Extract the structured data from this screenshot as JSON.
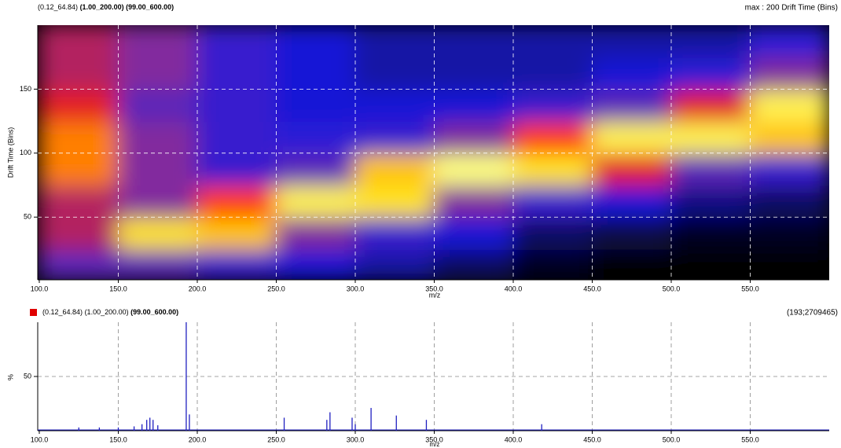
{
  "chart_data": [
    {
      "type": "heatmap",
      "title_parts": [
        "(0.12_64.84)",
        "(1.00_200.00)",
        "(99.00_600.00)"
      ],
      "subtitle": "max : 200 Drift Time (Bins)",
      "x_label": "m/z",
      "y_label": "Drift Time (Bins)",
      "xlim": [
        99,
        600
      ],
      "ylim": [
        1,
        200
      ],
      "xticks": [
        {
          "value": 100,
          "label": "100.0"
        },
        {
          "value": 150,
          "label": "150.0"
        },
        {
          "value": 200,
          "label": "200.0"
        },
        {
          "value": 250,
          "label": "250.0"
        },
        {
          "value": 300,
          "label": "300.0"
        },
        {
          "value": 350,
          "label": "350.0"
        },
        {
          "value": 400,
          "label": "400.0"
        },
        {
          "value": 450,
          "label": "450.0"
        },
        {
          "value": 500,
          "label": "500.0"
        },
        {
          "value": 550,
          "label": "550.0"
        }
      ],
      "yticks": [
        50,
        100,
        150
      ],
      "grid": true,
      "colormap": [
        "#000000",
        "#1a1ae0",
        "#7a2aa8",
        "#ff1a00",
        "#ffd800",
        "#ffff80"
      ],
      "x_bins": [
        100,
        150,
        200,
        250,
        300,
        350,
        400,
        450,
        500,
        550,
        600
      ],
      "y_bins": [
        1,
        25,
        50,
        75,
        100,
        125,
        150,
        175,
        200
      ],
      "values": [
        [
          35,
          35,
          30,
          25,
          22,
          18,
          14,
          12,
          12,
          12
        ],
        [
          45,
          70,
          65,
          40,
          30,
          25,
          18,
          16,
          14,
          14
        ],
        [
          45,
          40,
          55,
          75,
          70,
          40,
          30,
          25,
          20,
          18
        ],
        [
          60,
          40,
          30,
          35,
          65,
          80,
          70,
          50,
          35,
          30
        ],
        [
          60,
          40,
          30,
          28,
          30,
          40,
          55,
          75,
          75,
          65
        ],
        [
          50,
          35,
          30,
          25,
          25,
          25,
          30,
          35,
          50,
          75
        ],
        [
          45,
          40,
          30,
          25,
          22,
          22,
          22,
          25,
          28,
          40
        ],
        [
          45,
          40,
          30,
          25,
          22,
          22,
          22,
          22,
          22,
          28
        ]
      ]
    },
    {
      "type": "spectrum",
      "title_parts": [
        "(0.12_64.84)",
        "(1.00_200.00)",
        "(99.00_600.00)"
      ],
      "legend_color": "#e00000",
      "subtitle": "(193;2709465)",
      "x_label": "m/z",
      "y_label": "%",
      "xlim": [
        99,
        600
      ],
      "ylim": [
        0,
        100
      ],
      "xticks": [
        {
          "value": 100,
          "label": "100.0"
        },
        {
          "value": 150,
          "label": "150.0"
        },
        {
          "value": 200,
          "label": "200.0"
        },
        {
          "value": 250,
          "label": "250.0"
        },
        {
          "value": 300,
          "label": "300.0"
        },
        {
          "value": 350,
          "label": "350.0"
        },
        {
          "value": 400,
          "label": "400.0"
        },
        {
          "value": 450,
          "label": "450.0"
        },
        {
          "value": 500,
          "label": "500.0"
        },
        {
          "value": 550,
          "label": "550.0"
        }
      ],
      "yticks": [
        50
      ],
      "grid": true,
      "color": "#2020c0",
      "x": [
        125,
        138,
        150,
        160,
        165,
        168,
        170,
        172,
        175,
        193,
        195,
        255,
        282,
        284,
        298,
        300,
        310,
        326,
        345,
        418
      ],
      "values": [
        3,
        3,
        3,
        4,
        6,
        10,
        12,
        10,
        5,
        100,
        15,
        12,
        10,
        17,
        12,
        6,
        21,
        14,
        10,
        6
      ]
    }
  ]
}
